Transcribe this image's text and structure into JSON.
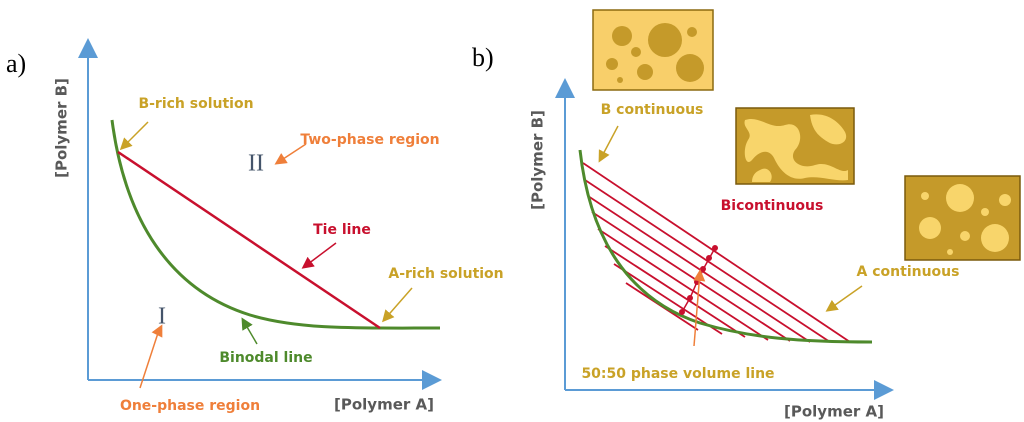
{
  "panel_a": {
    "label": "a)",
    "x_axis_label": "[Polymer A]",
    "y_axis_label": "[Polymer B]",
    "b_rich": "B-rich solution",
    "two_phase": "Two-phase region",
    "tie_line": "Tie line",
    "a_rich": "A-rich solution",
    "binodal": "Binodal line",
    "one_phase": "One-phase region",
    "region_two": "II",
    "region_one": "I"
  },
  "panel_b": {
    "label": "b)",
    "x_axis_label": "[Polymer A]",
    "y_axis_label": "[Polymer B]",
    "b_continuous": "B continuous",
    "bicontinuous": "Bicontinuous",
    "a_continuous": "A continuous",
    "volume_line": "50:50 phase volume line"
  }
}
